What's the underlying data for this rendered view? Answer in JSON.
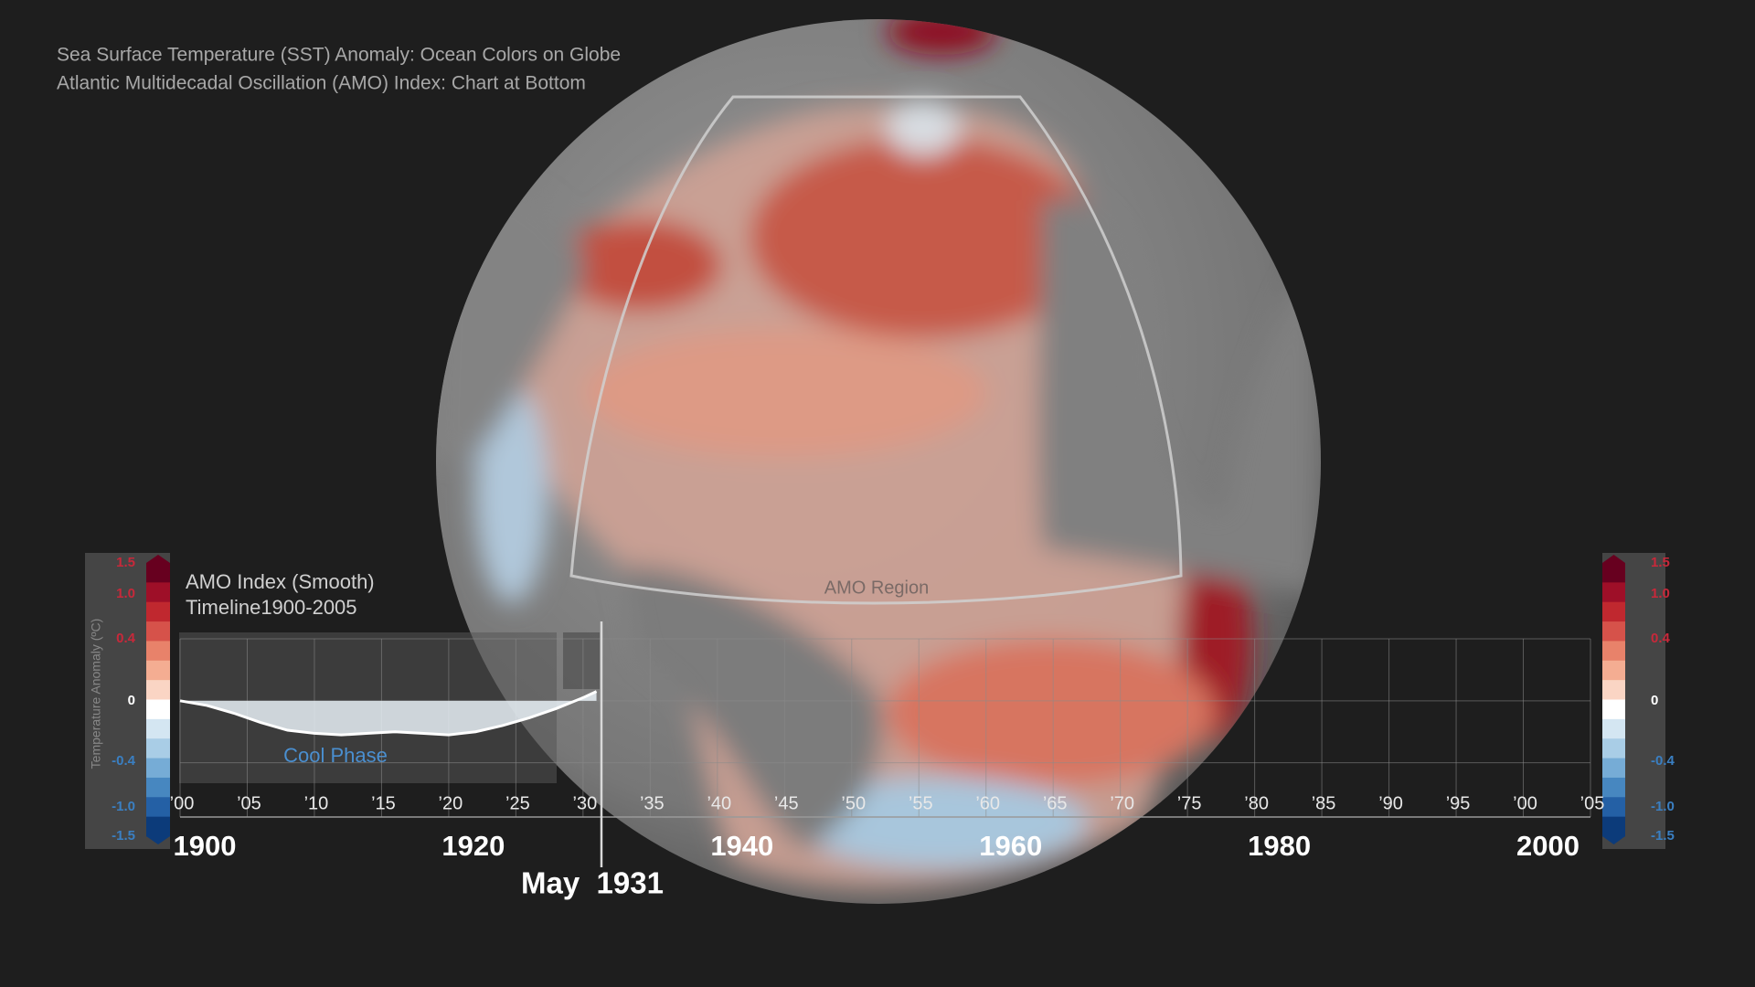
{
  "header": {
    "lines": [
      "Sea Surface Temperature (SST) Anomaly: Ocean Colors on Globe",
      "Atlantic Multidecadal Oscillation (AMO) Index: Chart at Bottom"
    ]
  },
  "globe": {
    "region_label": "AMO Region"
  },
  "colorbar": {
    "ticks": [
      1.5,
      {
        "value": 1,
        "label": "1.0"
      },
      0.4,
      0,
      -0.4,
      {
        "value": -1,
        "label": "-1.0"
      },
      -1.5
    ],
    "colors": [
      "#67001f",
      "#9e0f28",
      "#c0282f",
      "#d6524a",
      "#e8826a",
      "#f4ad92",
      "#fad5c4",
      "#ffffff",
      "#d4e6f2",
      "#a9cde6",
      "#76acd6",
      "#4787c0",
      "#2460a5",
      "#0c3b7a"
    ]
  },
  "chart_data": {
    "type": "area",
    "title": "AMO Index (Smooth)",
    "subtitle": "Timeline1900-2005",
    "ylabel": "Temperature Anomaly (ºC)",
    "annotation": "Cool Phase",
    "color": "#e8f0f6",
    "x": [
      1900,
      1902,
      1904,
      1906,
      1908,
      1910,
      1912,
      1914,
      1916,
      1918,
      1920,
      1922,
      1924,
      1926,
      1928,
      1930,
      1931
    ],
    "values": [
      0,
      -0.03,
      -0.08,
      -0.14,
      -0.19,
      -0.21,
      -0.22,
      -0.21,
      -0.2,
      -0.21,
      -0.22,
      -0.2,
      -0.16,
      -0.11,
      -0.05,
      0.02,
      0.06
    ],
    "xlim": [
      1900,
      2005
    ],
    "ylim": [
      -0.75,
      0.4
    ],
    "yticks": [
      0.4,
      0,
      -0.4
    ],
    "grid": true,
    "xticks": [
      {
        "value": 1900,
        "label": "’00"
      },
      {
        "value": 1905,
        "label": "’05"
      },
      {
        "value": 1910,
        "label": "’10"
      },
      {
        "value": 1915,
        "label": "’15"
      },
      {
        "value": 1920,
        "label": "’20"
      },
      {
        "value": 1925,
        "label": "’25"
      },
      {
        "value": 1930,
        "label": "’30"
      },
      {
        "value": 1935,
        "label": "’35"
      },
      {
        "value": 1940,
        "label": "’40"
      },
      {
        "value": 1945,
        "label": "’45"
      },
      {
        "value": 1950,
        "label": "’50"
      },
      {
        "value": 1955,
        "label": "’55"
      },
      {
        "value": 1960,
        "label": "’60"
      },
      {
        "value": 1965,
        "label": "’65"
      },
      {
        "value": 1970,
        "label": "’70"
      },
      {
        "value": 1975,
        "label": "’75"
      },
      {
        "value": 1980,
        "label": "’80"
      },
      {
        "value": 1985,
        "label": "’85"
      },
      {
        "value": 1990,
        "label": "’90"
      },
      {
        "value": 1995,
        "label": "’95"
      },
      {
        "value": 2000,
        "label": "’00"
      },
      {
        "value": 2005,
        "label": "’05"
      }
    ],
    "major_xticks": [
      1900,
      1920,
      1940,
      1960,
      1980,
      2000
    ],
    "cursor_x": 1931.37,
    "cursor_label": "May  1931"
  }
}
